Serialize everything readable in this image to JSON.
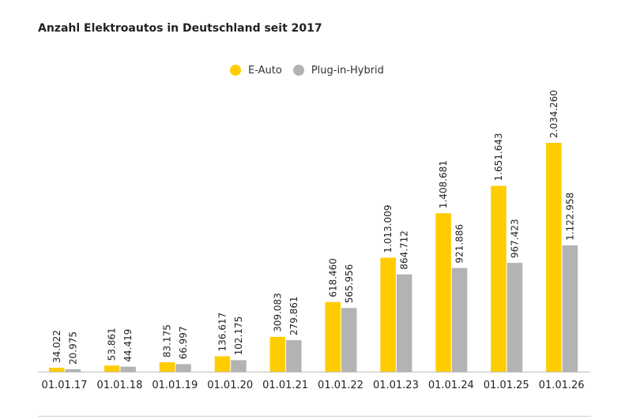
{
  "chart_data": {
    "type": "bar",
    "title": "Anzahl Elektroautos in Deutschland seit 2017",
    "categories": [
      "01.01.17",
      "01.01.18",
      "01.01.19",
      "01.01.20",
      "01.01.21",
      "01.01.22",
      "01.01.23",
      "01.01.24",
      "01.01.25",
      "01.01.26"
    ],
    "series": [
      {
        "name": "E-Auto",
        "color": "#ffcc00",
        "values": [
          34022,
          53861,
          83175,
          136617,
          309083,
          618460,
          1013009,
          1408681,
          1651643,
          2034260
        ],
        "labels": [
          "34.022",
          "53.861",
          "83.175",
          "136.617",
          "309.083",
          "618.460",
          "1.013.009",
          "1.408.681",
          "1.651.643",
          "2.034.260"
        ]
      },
      {
        "name": "Plug-in-Hybrid",
        "color": "#b3b3b3",
        "values": [
          20975,
          44419,
          66997,
          102175,
          279861,
          565956,
          864712,
          921886,
          967423,
          1122958
        ],
        "labels": [
          "20.975",
          "44.419",
          "66.997",
          "102.175",
          "279.861",
          "565.956",
          "864.712",
          "921.886",
          "967.423",
          "1.122.958"
        ]
      }
    ],
    "legend_position": "top-center",
    "grid": false,
    "xlabel": "",
    "ylabel": ""
  }
}
